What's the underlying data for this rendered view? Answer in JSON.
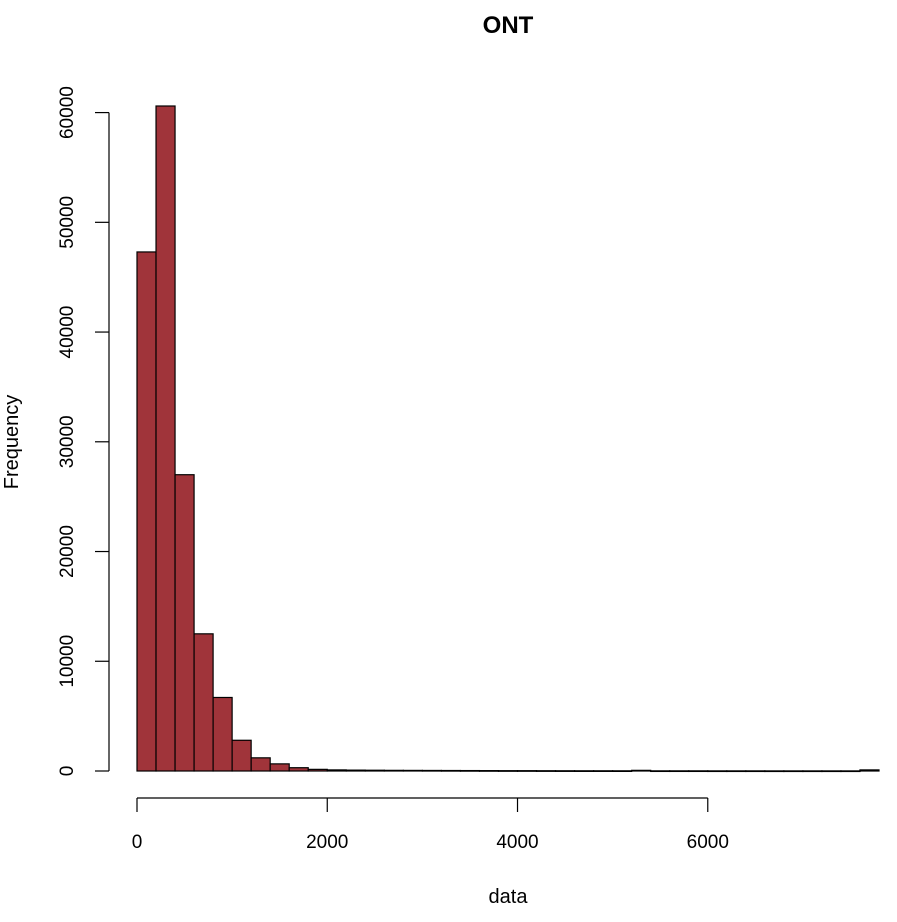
{
  "chart_data": {
    "type": "bar",
    "subtype": "histogram",
    "title": "ONT",
    "xlabel": "data",
    "ylabel": "Frequency",
    "bar_color": "#a0343a",
    "bin_width": 200,
    "x_start": 0,
    "values": [
      47300,
      60600,
      27000,
      12500,
      6700,
      2800,
      1200,
      650,
      300,
      150,
      100,
      80,
      70,
      60,
      55,
      50,
      45,
      40,
      35,
      30,
      30,
      25,
      22,
      20,
      20,
      18,
      60,
      15,
      15,
      15,
      12,
      12,
      12,
      10,
      10,
      10,
      10,
      10,
      100
    ],
    "x_ticks": [
      "0",
      "2000",
      "4000",
      "6000"
    ],
    "x_tick_values": [
      0,
      2000,
      4000,
      6000
    ],
    "y_ticks": [
      "0",
      "10000",
      "20000",
      "30000",
      "40000",
      "50000",
      "60000"
    ],
    "y_tick_values": [
      0,
      10000,
      20000,
      30000,
      40000,
      50000,
      60000
    ],
    "xlim": [
      0,
      7800
    ],
    "ylim": [
      0,
      60600
    ],
    "grid": false,
    "legend": "none"
  }
}
